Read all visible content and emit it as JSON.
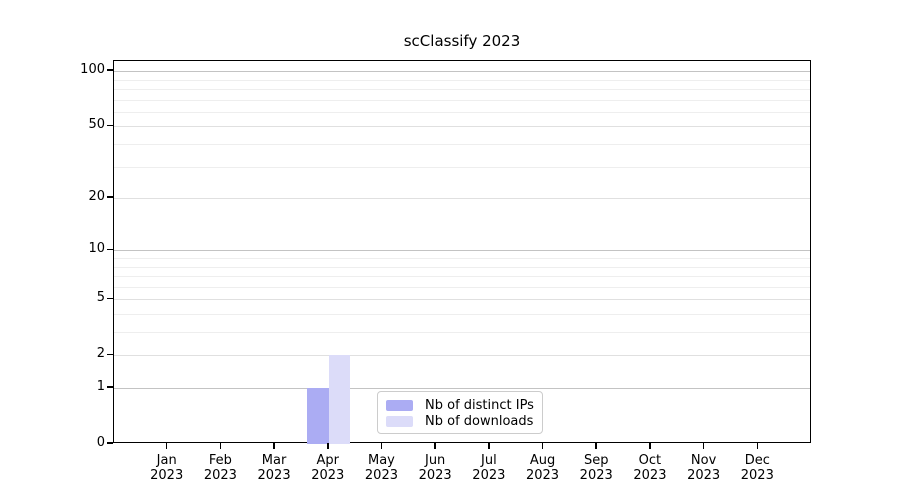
{
  "chart_data": {
    "type": "bar",
    "title": "scClassify 2023",
    "months": [
      "Jan",
      "Feb",
      "Mar",
      "Apr",
      "May",
      "Jun",
      "Jul",
      "Aug",
      "Sep",
      "Oct",
      "Nov",
      "Dec"
    ],
    "year": "2023",
    "series": [
      {
        "name": "Nb of distinct IPs",
        "color": "#abacf3",
        "values": [
          0,
          0,
          0,
          1,
          0,
          0,
          0,
          0,
          0,
          0,
          0,
          0
        ]
      },
      {
        "name": "Nb of downloads",
        "color": "#dcdcf9",
        "values": [
          0,
          0,
          0,
          2,
          0,
          0,
          0,
          0,
          0,
          0,
          0,
          0
        ]
      }
    ],
    "xlabel": "",
    "ylabel": "",
    "yaxis": {
      "scale": "log1p",
      "ticks": [
        0,
        1,
        2,
        5,
        10,
        20,
        50,
        100
      ],
      "major_gridlines": [
        1,
        10,
        100
      ],
      "labeled_gridlines": [
        2,
        5,
        20,
        50
      ],
      "minor_gridlines": [
        3,
        4,
        6,
        7,
        8,
        9,
        30,
        40,
        60,
        70,
        80,
        90
      ],
      "ylim": [
        0,
        113
      ]
    },
    "legend": {
      "position": "lower center",
      "entries": [
        "Nb of distinct IPs",
        "Nb of downloads"
      ]
    },
    "grid": true
  },
  "colors": {
    "major_grid": "#c3c3c3",
    "labeled_grid": "#e0e0e0",
    "minor_grid": "#eeeeee",
    "axis": "#000000",
    "legend_border": "#cccccc",
    "background": "#ffffff"
  }
}
